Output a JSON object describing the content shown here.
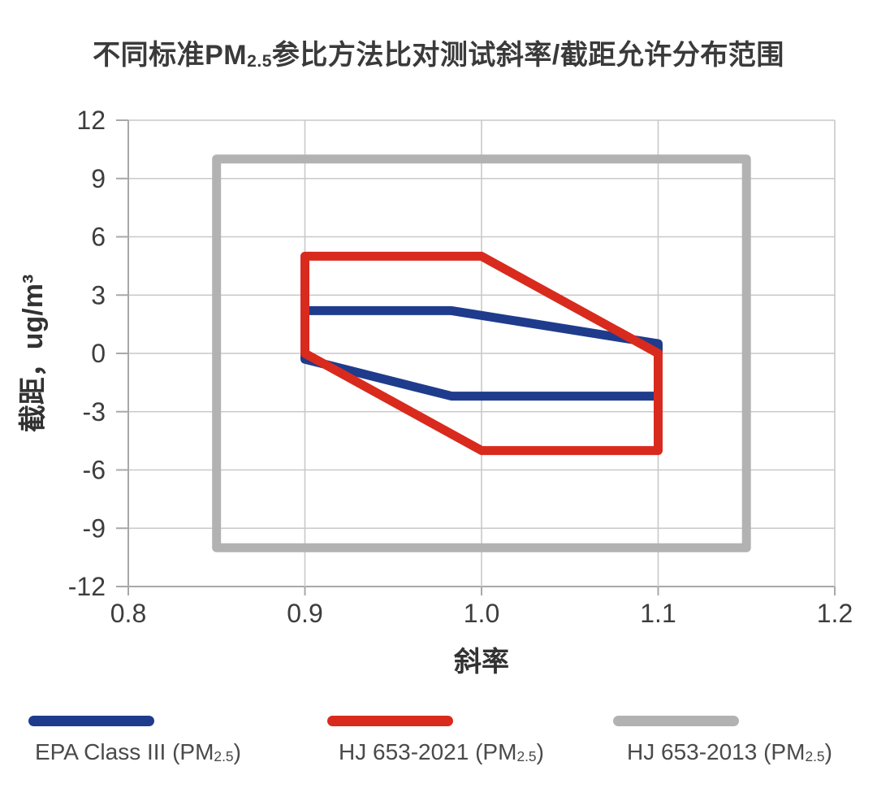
{
  "title": {
    "prefix": "不同标准PM",
    "sub": "2.5",
    "suffix": "参比方法比对测试斜率/截距允许分布范围"
  },
  "chart_data": {
    "type": "polygon-region-plot",
    "title": "不同标准PM2.5参比方法比对测试斜率/截距允许分布范围",
    "xlabel": "斜率",
    "ylabel": "截距，ug/m³",
    "xlim": [
      0.8,
      1.2
    ],
    "ylim": [
      -12,
      12
    ],
    "x_tick_values": [
      0.8,
      0.9,
      1.0,
      1.1,
      1.2
    ],
    "x_tick_labels": [
      "0.8",
      "0.9",
      "1.0",
      "1.1",
      "1.2"
    ],
    "y_tick_values": [
      12,
      9,
      6,
      3,
      0,
      -3,
      -6,
      -9,
      -12
    ],
    "y_tick_labels": [
      "12",
      "9",
      "6",
      "3",
      "0",
      "-3",
      "-6",
      "-9",
      "-12"
    ],
    "grid": true,
    "legend_position": "bottom",
    "series": [
      {
        "id": "epa-class-iii",
        "name": "EPA Class III (PM2.5)",
        "color": "#1f3b8c",
        "vertices": [
          [
            0.9,
            -0.3
          ],
          [
            0.9,
            2.2
          ],
          [
            0.983,
            2.2
          ],
          [
            1.1,
            0.5
          ],
          [
            1.1,
            -2.2
          ],
          [
            0.983,
            -2.2
          ]
        ]
      },
      {
        "id": "hj-653-2021",
        "name": "HJ 653-2021 (PM2.5)",
        "color": "#d92a1e",
        "vertices": [
          [
            0.9,
            0
          ],
          [
            0.9,
            5
          ],
          [
            1.0,
            5
          ],
          [
            1.1,
            0
          ],
          [
            1.1,
            -5
          ],
          [
            1.0,
            -5
          ]
        ]
      },
      {
        "id": "hj-653-2013",
        "name": "HJ 653-2013 (PM2.5)",
        "color": "#b2b2b2",
        "vertices": [
          [
            0.85,
            10
          ],
          [
            1.15,
            10
          ],
          [
            1.15,
            -10
          ],
          [
            0.85,
            -10
          ]
        ]
      }
    ],
    "draw_order": [
      2,
      0,
      1
    ]
  },
  "legend": {
    "items": [
      {
        "prefix": "EPA Class III (PM",
        "sub": "2.5",
        "suffix": ")"
      },
      {
        "prefix": "HJ 653-2021 (PM",
        "sub": "2.5",
        "suffix": ")"
      },
      {
        "prefix": "HJ 653-2013 (PM",
        "sub": "2.5",
        "suffix": ")"
      }
    ]
  }
}
